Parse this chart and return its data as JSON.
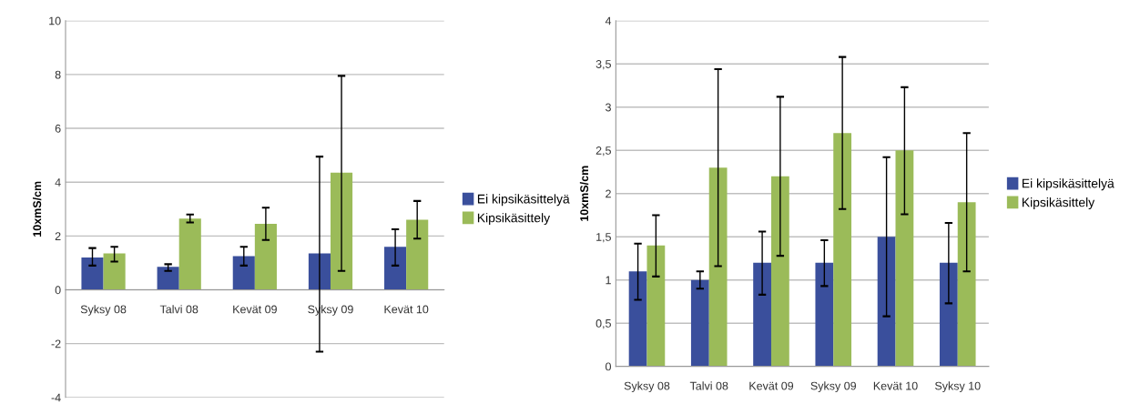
{
  "chart_data": [
    {
      "type": "bar",
      "ylabel": "10xmS/cm",
      "categories": [
        "Syksy 08",
        "Talvi 08",
        "Kevät 09",
        "Syksy 09",
        "Kevät 10"
      ],
      "ylim": [
        -4,
        10
      ],
      "yticks": [
        -4,
        -2,
        0,
        2,
        4,
        6,
        8,
        10
      ],
      "grid": "y",
      "legend": "right",
      "series": [
        {
          "name": "Ei kipsikäsittelyä",
          "color": "#3a4f9c",
          "values": [
            1.2,
            0.85,
            1.25,
            1.35,
            1.6
          ],
          "errors": [
            [
              0.9,
              1.55
            ],
            [
              0.7,
              0.95
            ],
            [
              0.9,
              1.6
            ],
            [
              -2.3,
              4.95
            ],
            [
              0.9,
              2.25
            ]
          ]
        },
        {
          "name": "Kipsikäsittely",
          "color": "#9bbb59",
          "values": [
            1.35,
            2.65,
            2.45,
            4.35,
            2.6
          ],
          "errors": [
            [
              1.05,
              1.6
            ],
            [
              2.5,
              2.8
            ],
            [
              1.85,
              3.05
            ],
            [
              0.7,
              7.95
            ],
            [
              1.9,
              3.3
            ]
          ]
        }
      ]
    },
    {
      "type": "bar",
      "ylabel": "10xmS/cm",
      "categories": [
        "Syksy 08",
        "Talvi 08",
        "Kevät 09",
        "Syksy 09",
        "Kevät 10",
        "Syksy 10"
      ],
      "ylim": [
        0,
        4
      ],
      "yticks": [
        0,
        {
          "value": 0.5,
          "label": "0,5"
        },
        1,
        {
          "value": 1.5,
          "label": "1,5"
        },
        2,
        {
          "value": 2.5,
          "label": "2,5"
        },
        3,
        {
          "value": 3.5,
          "label": "3,5"
        },
        4
      ],
      "grid": "y",
      "legend": "right",
      "series": [
        {
          "name": "Ei kipsikäsittelyä",
          "color": "#3a4f9c",
          "values": [
            1.1,
            1.0,
            1.2,
            1.2,
            1.5,
            1.2
          ],
          "errors": [
            [
              0.77,
              1.42
            ],
            [
              0.9,
              1.1
            ],
            [
              0.83,
              1.56
            ],
            [
              0.93,
              1.46
            ],
            [
              0.58,
              2.42
            ],
            [
              0.73,
              1.66
            ]
          ]
        },
        {
          "name": "Kipsikäsittely",
          "color": "#9bbb59",
          "values": [
            1.4,
            2.3,
            2.2,
            2.7,
            2.5,
            1.9
          ],
          "errors": [
            [
              1.04,
              1.75
            ],
            [
              1.16,
              3.44
            ],
            [
              1.28,
              3.12
            ],
            [
              1.82,
              3.58
            ],
            [
              1.76,
              3.23
            ],
            [
              1.1,
              2.7
            ]
          ]
        }
      ]
    }
  ]
}
